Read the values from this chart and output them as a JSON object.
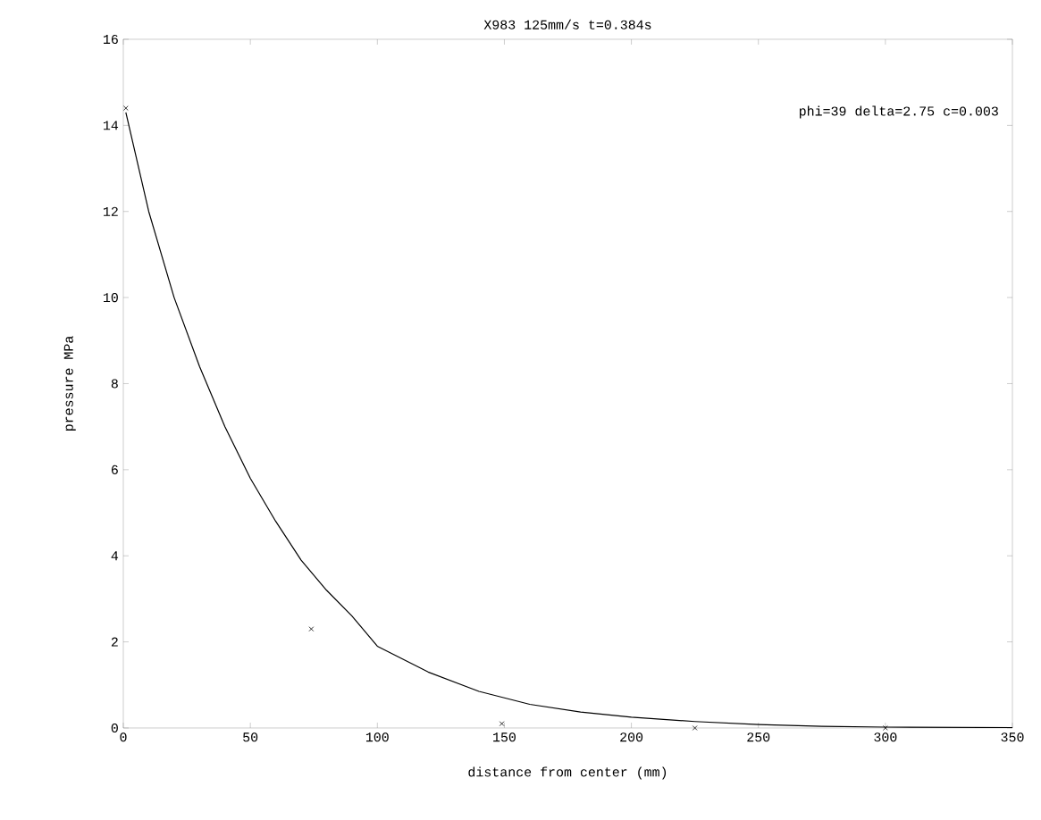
{
  "chart_data": {
    "type": "scatter",
    "title": "X983 125mm/s t=0.384s",
    "xlabel": "distance from center (mm)",
    "ylabel": "pressure MPa",
    "annotations": [
      "phi=39 delta=2.75 c=0.003"
    ],
    "xlim": [
      0,
      350
    ],
    "ylim": [
      0,
      16
    ],
    "xticks": [
      0,
      50,
      100,
      150,
      200,
      250,
      300,
      350
    ],
    "yticks": [
      0,
      2,
      4,
      6,
      8,
      10,
      12,
      14,
      16
    ],
    "grid": false,
    "series": [
      {
        "marker": "cross",
        "color": "#000000",
        "x": [
          1,
          74,
          149,
          225,
          300
        ],
        "values": [
          14.4,
          2.3,
          0.1,
          0,
          0
        ]
      },
      {
        "type": "line",
        "marker": "none",
        "line_style": "solid",
        "color": "#000000",
        "x": [
          1,
          10,
          20,
          30,
          40,
          50,
          60,
          70,
          80,
          90,
          100,
          120,
          140,
          160,
          180,
          200,
          225,
          250,
          275,
          300,
          350
        ],
        "values": [
          14.3,
          12.0,
          10.0,
          8.4,
          7.0,
          5.8,
          4.8,
          3.9,
          3.2,
          2.6,
          1.9,
          1.3,
          0.85,
          0.55,
          0.37,
          0.25,
          0.15,
          0.08,
          0.04,
          0.02,
          0.01
        ]
      }
    ]
  }
}
